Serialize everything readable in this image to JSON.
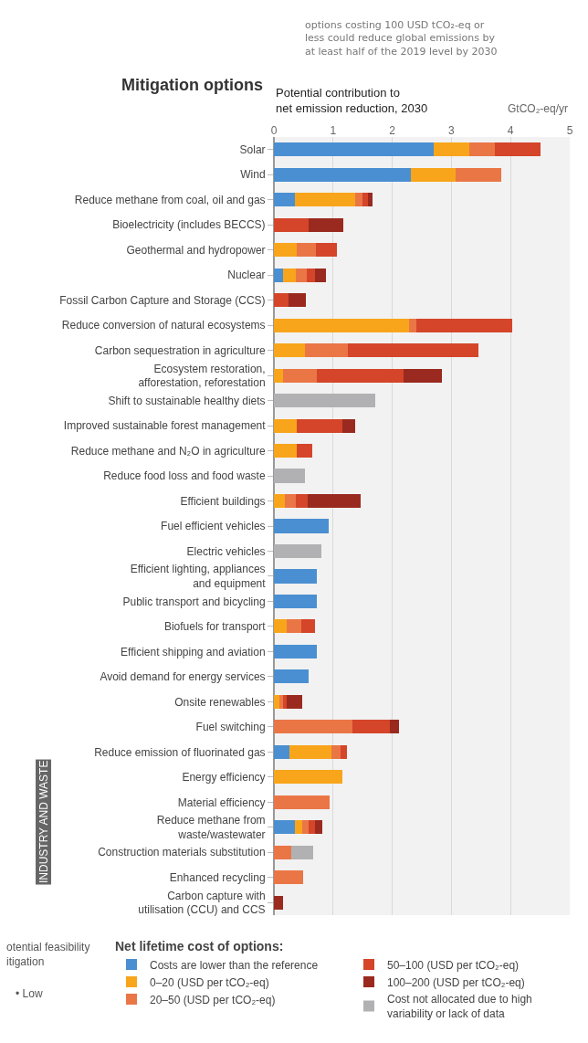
{
  "chart_data": {
    "type": "bar",
    "orientation": "horizontal",
    "stacked": true,
    "title": "Mitigation options",
    "xlabel": "Potential contribution to\nnet emission reduction, 2030",
    "legend_title": "Net lifetime cost of options:",
    "annotations": [
      "options costing 100 USD tCO₂-eq or\nless could reduce global emissions by\nat least half of the 2019 level by 2030",
      "GtCO₂-eq/yr",
      "INDUSTRY AND WASTE",
      "otential feasibility\nitigation",
      "• Low"
    ],
    "categories": [
      "Solar",
      "Wind",
      "Reduce methane from coal, oil and gas",
      "Bioelectricity (includes BECCS)",
      "Geothermal and hydropower",
      "Nuclear",
      "Fossil Carbon Capture and Storage (CCS)",
      "Reduce conversion of natural ecosystems",
      "Carbon sequestration in agriculture",
      "Ecosystem restoration,\nafforestation, reforestation",
      "Shift to sustainable healthy diets",
      "Improved sustainable forest management",
      "Reduce methane and N₂O in agriculture",
      "Reduce food loss and food waste",
      "Efficient buildings",
      "Fuel efficient vehicles",
      "Electric vehicles",
      "Efficient lighting, appliances\nand equipment",
      "Public transport and bicycling",
      "Biofuels for transport",
      "Efficient shipping and aviation",
      "Avoid demand for energy services",
      "Onsite renewables",
      "Fuel switching",
      "Reduce emission of fluorinated gas",
      "Energy efficiency",
      "Material efficiency",
      "Reduce methane from\nwaste/wastewater",
      "Construction materials substitution",
      "Enhanced recycling",
      "Carbon capture with\nutilisation (CCU) and CCS"
    ],
    "series": [
      {
        "name": "Costs are lower than the reference",
        "color": "#4a8fd1",
        "values": [
          2.7,
          2.32,
          0.35,
          null,
          null,
          0.16,
          null,
          null,
          null,
          null,
          null,
          null,
          null,
          null,
          null,
          0.93,
          null,
          0.73,
          0.73,
          null,
          0.72,
          0.58,
          null,
          null,
          0.26,
          null,
          null,
          0.35,
          null,
          null,
          null
        ]
      },
      {
        "name": "0–20 (USD per tCO₂-eq)",
        "color": "#f8a51b",
        "values": [
          0.6,
          0.75,
          1.03,
          null,
          0.38,
          0.21,
          null,
          2.28,
          0.52,
          0.16,
          null,
          0.39,
          0.38,
          null,
          0.19,
          null,
          null,
          null,
          null,
          0.22,
          null,
          null,
          0.09,
          null,
          0.71,
          1.15,
          null,
          0.13,
          null,
          null,
          null
        ]
      },
      {
        "name": "20–50 (USD per tCO₂-eq)",
        "color": "#ea7646",
        "values": [
          0.44,
          0.78,
          0.12,
          null,
          0.33,
          0.18,
          null,
          0.12,
          0.73,
          0.56,
          null,
          null,
          null,
          null,
          0.18,
          null,
          null,
          null,
          null,
          0.25,
          null,
          null,
          0.06,
          1.32,
          0.16,
          null,
          0.94,
          0.11,
          0.3,
          0.5,
          null
        ]
      },
      {
        "name": "50–100 (USD per tCO₂-eq)",
        "color": "#d4452a",
        "values": [
          0.77,
          null,
          0.09,
          0.58,
          0.35,
          0.15,
          0.25,
          1.62,
          2.21,
          1.47,
          null,
          0.77,
          0.27,
          null,
          0.2,
          null,
          null,
          null,
          null,
          0.23,
          null,
          null,
          0.06,
          0.64,
          0.11,
          null,
          null,
          0.1,
          null,
          null,
          null
        ]
      },
      {
        "name": "100–200 (USD per tCO₂-eq)",
        "color": "#9a2a1f",
        "values": [
          null,
          null,
          0.07,
          0.6,
          null,
          0.18,
          0.29,
          null,
          null,
          0.65,
          null,
          0.22,
          null,
          null,
          0.89,
          null,
          null,
          null,
          null,
          null,
          null,
          null,
          0.27,
          0.16,
          null,
          null,
          null,
          0.13,
          null,
          null,
          0.16
        ]
      },
      {
        "name": "Cost not allocated due to high\nvariability or lack of data",
        "color": "#b1b1b4",
        "values": [
          null,
          null,
          null,
          null,
          null,
          null,
          null,
          null,
          null,
          null,
          1.71,
          null,
          null,
          0.52,
          null,
          null,
          0.81,
          null,
          null,
          null,
          null,
          null,
          null,
          null,
          null,
          null,
          null,
          null,
          0.37,
          null,
          null
        ]
      }
    ],
    "xlim": [
      0,
      5
    ],
    "xticks": [
      0,
      1,
      2,
      3,
      4,
      5
    ],
    "grid": "x",
    "legend": "bottom"
  }
}
